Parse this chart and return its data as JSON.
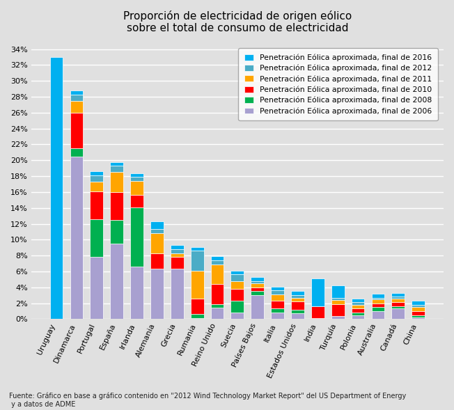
{
  "title": "Proporción de electricidad de origen eólico\nsobre el total de consumo de electricidad",
  "countries": [
    "Uruguay",
    "Dinamarca",
    "Portugal",
    "España",
    "Irlanda",
    "Alemania",
    "Grecia",
    "Rumania",
    "Reino Unido",
    "Suecia",
    "Países Bajos",
    "Italia",
    "Estados Unidos",
    "India",
    "Turquía",
    "Polonia",
    "Australia",
    "Canadá",
    "China"
  ],
  "series": {
    "2006": [
      0.0,
      20.5,
      7.8,
      9.5,
      6.6,
      6.3,
      6.3,
      0.1,
      1.4,
      0.8,
      3.0,
      0.8,
      0.7,
      0.1,
      0.4,
      0.5,
      1.0,
      1.3,
      0.2
    ],
    "2008": [
      0.0,
      1.0,
      4.8,
      3.0,
      7.5,
      0.0,
      0.0,
      0.5,
      0.5,
      1.5,
      0.5,
      0.5,
      0.5,
      0.0,
      0.0,
      0.3,
      0.5,
      0.3,
      0.3
    ],
    "2010": [
      0.0,
      4.5,
      3.5,
      3.5,
      1.5,
      2.0,
      1.5,
      2.0,
      2.5,
      1.5,
      0.5,
      1.0,
      1.0,
      1.5,
      1.5,
      0.5,
      0.5,
      0.5,
      0.5
    ],
    "2011": [
      0.0,
      1.5,
      1.2,
      2.5,
      1.8,
      2.5,
      0.5,
      3.5,
      2.5,
      1.0,
      0.5,
      0.8,
      0.5,
      0.0,
      0.5,
      0.5,
      0.5,
      0.5,
      0.5
    ],
    "2012": [
      0.0,
      0.8,
      0.8,
      0.8,
      0.5,
      0.5,
      0.5,
      2.5,
      0.5,
      0.8,
      0.3,
      0.5,
      0.3,
      0.0,
      0.3,
      0.3,
      0.2,
      0.2,
      0.3
    ],
    "2016": [
      33.0,
      0.5,
      0.5,
      0.5,
      0.5,
      1.0,
      0.5,
      0.5,
      0.5,
      0.5,
      0.5,
      0.5,
      0.5,
      3.5,
      1.5,
      0.5,
      0.5,
      0.5,
      0.5
    ]
  },
  "colors": {
    "2006": "#a8a0d0",
    "2008": "#00b050",
    "2010": "#ff0000",
    "2011": "#ffa500",
    "2012": "#4bacc6",
    "2016": "#00b0f0"
  },
  "legend_labels": {
    "2016": "Penetración Eólica aproximada, final de 2016",
    "2012": "Penetración Eólica aproximada, final de 2012",
    "2011": "Penetración Eólica aproximada, final de 2011",
    "2010": "Penetración Eólica aproximada, final de 2010",
    "2008": "Penetración Eólica aproximada, final de 2008",
    "2006": "Penetración Eólica aproximada, final de 2006"
  },
  "ytick_labels": [
    "0%",
    "2%",
    "4%",
    "6%",
    "8%",
    "10%",
    "12%",
    "14%",
    "16%",
    "18%",
    "20%",
    "22%",
    "24%",
    "26%",
    "28%",
    "30%",
    "32%",
    "34%"
  ],
  "yticks_vals": [
    0,
    2,
    4,
    6,
    8,
    10,
    12,
    14,
    16,
    18,
    20,
    22,
    24,
    26,
    28,
    30,
    32,
    34
  ],
  "ymax": 35,
  "background_color": "#e0e0e0",
  "grid_color": "#ffffff",
  "bar_width": 0.65,
  "footnote": "Fuente: Gráfico en base a gráfico contenido en \"2012 Wind Technology Market Report\" del US Department of Energy\n y a datos de ADME"
}
